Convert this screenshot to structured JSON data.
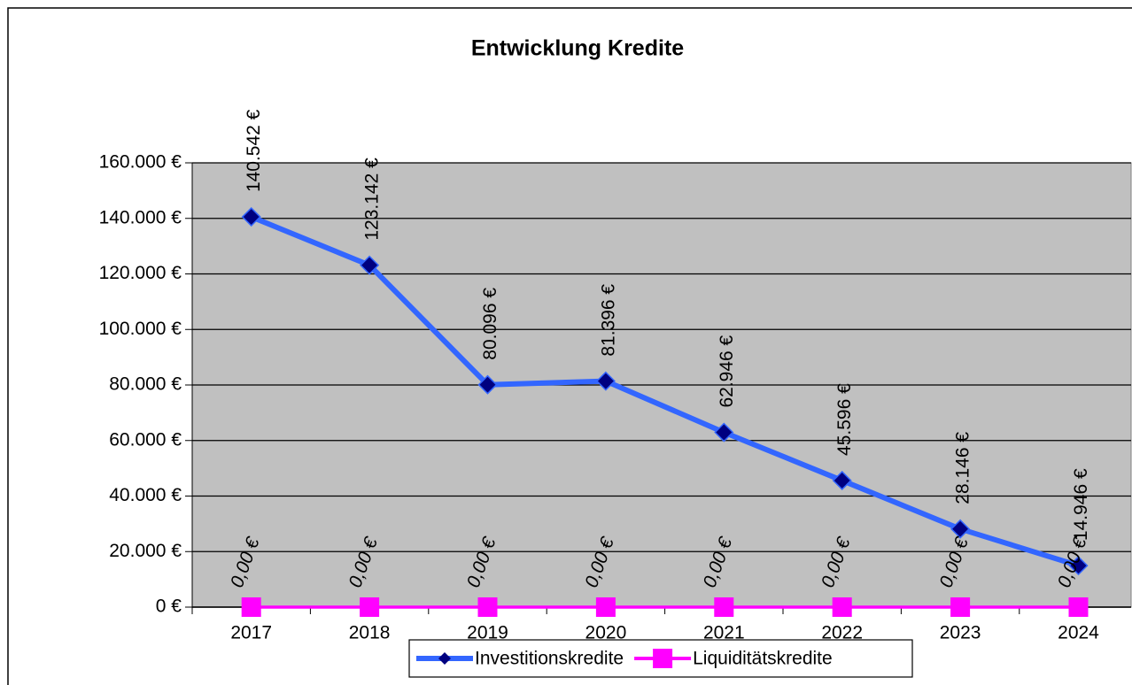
{
  "chart_data": {
    "type": "line",
    "title": "Entwicklung Kredite",
    "categories": [
      "2017",
      "2018",
      "2019",
      "2020",
      "2021",
      "2022",
      "2023",
      "2024"
    ],
    "series": [
      {
        "name": "Investitionskredite",
        "color": "#3366ff",
        "marker_color": "#000080",
        "values": [
          140542,
          123142,
          80096,
          81396,
          62946,
          45596,
          28146,
          14946
        ],
        "value_labels": [
          "140.542 €",
          "123.142 €",
          "80.096 €",
          "81.396 €",
          "62.946 €",
          "45.596 €",
          "28.146 €",
          "14.946 €"
        ]
      },
      {
        "name": "Liquiditätskredite",
        "color": "#ff00ff",
        "marker_color": "#ff00ff",
        "values": [
          0,
          0,
          0,
          0,
          0,
          0,
          0,
          0
        ],
        "value_labels": [
          "0,00 €",
          "0,00 €",
          "0,00 €",
          "0,00 €",
          "0,00 €",
          "0,00 €",
          "0,00 €",
          "0,00 €"
        ]
      }
    ],
    "ylim": [
      0,
      160000
    ],
    "yticks": [
      {
        "value": 0,
        "label": "0 €"
      },
      {
        "value": 20000,
        "label": "20.000 €"
      },
      {
        "value": 40000,
        "label": "40.000 €"
      },
      {
        "value": 60000,
        "label": "60.000 €"
      },
      {
        "value": 80000,
        "label": "80.000 €"
      },
      {
        "value": 100000,
        "label": "100.000 €"
      },
      {
        "value": 120000,
        "label": "120.000 €"
      },
      {
        "value": 140000,
        "label": "140.000 €"
      },
      {
        "value": 160000,
        "label": "160.000 €"
      }
    ],
    "grid": true,
    "legend": "bottom",
    "plot_background": "#c0c0c0"
  }
}
